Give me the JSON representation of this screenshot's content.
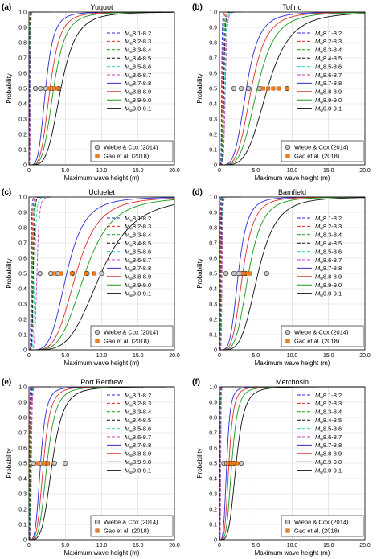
{
  "figure": {
    "shared": {
      "ylabel": "Probability",
      "xlabel": "Maximum wave height (m)",
      "xticks": [
        "0",
        "5.0",
        "10.0",
        "15.0",
        "20.0"
      ],
      "yticks": [
        "0",
        "0.1",
        "0.2",
        "0.3",
        "0.4",
        "0.5",
        "0.6",
        "0.7",
        "0.8",
        "0.9",
        "1.0"
      ],
      "legend_entries": [
        {
          "sub": "w",
          "text": "8.1-8.2",
          "color": "#2b2bd6",
          "dash": "4,2"
        },
        {
          "sub": "w",
          "text": "8.2-8.3",
          "color": "#e03030",
          "dash": "4,2"
        },
        {
          "sub": "w",
          "text": "8.3-8.4",
          "color": "#1a9a1a",
          "dash": "4,2"
        },
        {
          "sub": "w",
          "text": "8.4-8.5",
          "color": "#111111",
          "dash": "4,2"
        },
        {
          "sub": "w",
          "text": "8.5-8.6",
          "color": "#38d0d0",
          "dash": "4,2"
        },
        {
          "sub": "w",
          "text": "8.6-8.7",
          "color": "#c040c0",
          "dash": "4,2"
        },
        {
          "sub": "w",
          "text": "8.7-8.8",
          "color": "#2b2bd6",
          "dash": ""
        },
        {
          "sub": "w",
          "text": "8.8-8.9",
          "color": "#e03030",
          "dash": ""
        },
        {
          "sub": "w",
          "text": "8.9-9.0",
          "color": "#1a9a1a",
          "dash": ""
        },
        {
          "sub": "w",
          "text": "9.0-9.1",
          "color": "#111111",
          "dash": ""
        }
      ],
      "legend_prefix": "M",
      "marker_legend": [
        {
          "label": "Wiebe & Cox (2014)",
          "marker": "circle",
          "fill": "#c8c8c8",
          "stroke": "#333333"
        },
        {
          "label": "Gao et al. (2018)",
          "marker": "square",
          "fill": "#f08020",
          "stroke": "#b05000"
        }
      ]
    }
  },
  "chart_data": [
    {
      "type": "line",
      "panel": "(a)",
      "title": "Yuquot",
      "xlim": [
        0,
        20
      ],
      "ylim": [
        0,
        1
      ],
      "xlabel": "Maximum wave height (m)",
      "ylabel": "Probability",
      "legend_position": "lower-right",
      "series_cdf_median_m": [
        0.08,
        0.1,
        0.12,
        0.14,
        0.17,
        0.2,
        2.3,
        2.9,
        3.4,
        4.4
      ],
      "wiebe_cox_2014": {
        "x": [
          0.9,
          1.6,
          2.3,
          3.1,
          4.1
        ],
        "y": 0.5
      },
      "gao_2018": {
        "x": [
          2.7,
          3.5,
          4.0
        ],
        "y": 0.5
      }
    },
    {
      "type": "line",
      "panel": "(b)",
      "title": "Tofino",
      "xlim": [
        0,
        20
      ],
      "ylim": [
        0,
        1
      ],
      "xlabel": "Maximum wave height (m)",
      "ylabel": "Probability",
      "legend_position": "lower-right",
      "series_cdf_median_m": [
        0.3,
        0.4,
        0.5,
        0.6,
        0.7,
        0.8,
        3.7,
        4.4,
        5.2,
        6.6
      ],
      "wiebe_cox_2014": {
        "x": [
          2.0,
          3.0,
          4.0,
          5.5,
          9.3
        ],
        "y": 0.5
      },
      "gao_2018": {
        "x": [
          6.0,
          6.7,
          7.4,
          8.1,
          9.3
        ],
        "y": 0.5
      }
    },
    {
      "type": "line",
      "panel": "(c)",
      "title": "Ucluelet",
      "xlim": [
        0,
        20
      ],
      "ylim": [
        0,
        1
      ],
      "xlabel": "Maximum wave height (m)",
      "ylabel": "Probability",
      "legend_position": "lower-right",
      "series_cdf_median_m": [
        0.3,
        0.4,
        0.5,
        0.6,
        0.8,
        1.1,
        5.2,
        6.5,
        7.7,
        9.9
      ],
      "wiebe_cox_2014": {
        "x": [
          1.5,
          3.0,
          4.0,
          6.0,
          8.0,
          10.0
        ],
        "y": 0.5
      },
      "gao_2018": {
        "x": [
          3.5,
          4.4,
          5.9,
          7.9,
          9.0
        ],
        "y": 0.5
      }
    },
    {
      "type": "line",
      "panel": "(d)",
      "title": "Bamfield",
      "xlim": [
        0,
        20
      ],
      "ylim": [
        0,
        1
      ],
      "xlabel": "Maximum wave height (m)",
      "ylabel": "Probability",
      "legend_position": "lower-right",
      "series_cdf_median_m": [
        0.1,
        0.15,
        0.2,
        0.25,
        0.3,
        0.35,
        2.6,
        3.2,
        4.0,
        5.3
      ],
      "wiebe_cox_2014": {
        "x": [
          0.9,
          2.0,
          2.6,
          3.1,
          3.6,
          6.5
        ],
        "y": 0.5
      },
      "gao_2018": {
        "x": [
          3.3,
          3.8,
          4.2
        ],
        "y": 0.5
      }
    },
    {
      "type": "line",
      "panel": "(e)",
      "title": "Port Renfrew",
      "xlim": [
        0,
        20
      ],
      "ylim": [
        0,
        1
      ],
      "xlabel": "Maximum wave height (m)",
      "ylabel": "Probability",
      "legend_position": "upper-right",
      "series_cdf_median_m": [
        0.1,
        0.15,
        0.2,
        0.25,
        0.3,
        0.35,
        1.6,
        2.0,
        2.5,
        3.2
      ],
      "wiebe_cox_2014": {
        "x": [
          0.6,
          1.5,
          2.4,
          3.5,
          5.0
        ],
        "y": 0.5
      },
      "gao_2018": {
        "x": [
          1.2,
          2.0,
          2.6
        ],
        "y": 0.5
      }
    },
    {
      "type": "line",
      "panel": "(f)",
      "title": "Metchosin",
      "xlim": [
        0,
        20
      ],
      "ylim": [
        0,
        1
      ],
      "xlabel": "Maximum wave height (m)",
      "ylabel": "Probability",
      "legend_position": "upper-right",
      "series_cdf_median_m": [
        0.08,
        0.1,
        0.12,
        0.14,
        0.16,
        0.18,
        1.0,
        1.3,
        1.7,
        2.3
      ],
      "wiebe_cox_2014": {
        "x": [
          0.6,
          1.0,
          1.4,
          2.0,
          3.0
        ],
        "y": 0.5
      },
      "gao_2018": {
        "x": [
          1.2,
          1.6,
          2.0,
          2.4
        ],
        "y": 0.5
      }
    }
  ]
}
